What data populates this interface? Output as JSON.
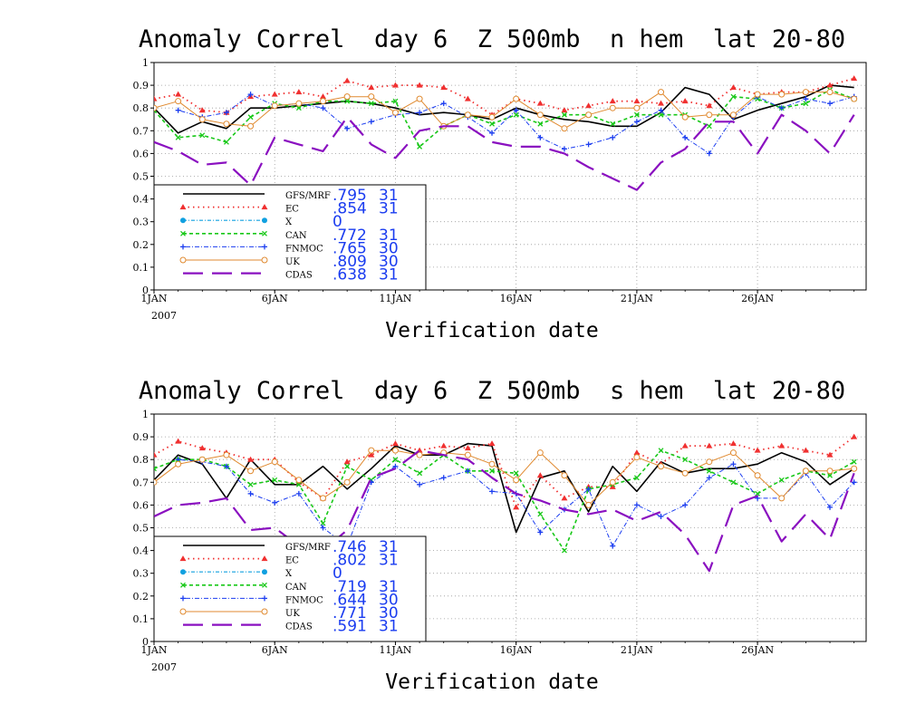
{
  "colors": {
    "GFS/MRF": "#000000",
    "EC": "#f03030",
    "X": "#10a0e0",
    "CAN": "#18c818",
    "FNMOC": "#1a3cf0",
    "UK": "#e08a30",
    "CDAS": "#8a10c0",
    "legend_value": "#1a3cf0",
    "grid": "#9a9a9a"
  },
  "chart_data": [
    {
      "type": "line",
      "title": "Anomaly Correl  day 6  Z 500mb  n hem  lat 20-80",
      "xlabel": "Verification date",
      "ylabel": "",
      "x_tick_labels": [
        "1JAN",
        "6JAN",
        "11JAN",
        "16JAN",
        "21JAN",
        "26JAN"
      ],
      "x_tick_days": [
        1,
        6,
        11,
        16,
        21,
        26
      ],
      "x_year_label": "2007",
      "xlim": [
        1,
        30
      ],
      "ylim": [
        0,
        1
      ],
      "y_ticks": [
        "0",
        "0.1",
        "0.2",
        "0.3",
        "0.4",
        "0.5",
        "0.6",
        "0.7",
        "0.8",
        "0.9",
        "1"
      ],
      "grid": true,
      "legend_placement": "bottom-left",
      "legend": [
        {
          "name": "GFS/MRF",
          "value": ".795",
          "count": "31"
        },
        {
          "name": "EC",
          "value": ".854",
          "count": "31"
        },
        {
          "name": "X",
          "value": "0",
          "count": ""
        },
        {
          "name": "CAN",
          "value": ".772",
          "count": "31"
        },
        {
          "name": "FNMOC",
          "value": ".765",
          "count": "30"
        },
        {
          "name": "UK",
          "value": ".809",
          "count": "30"
        },
        {
          "name": "CDAS",
          "value": ".638",
          "count": "31"
        }
      ],
      "series": [
        {
          "name": "GFS/MRF",
          "x": [
            1,
            2,
            3,
            4,
            5,
            6,
            7,
            8,
            9,
            10,
            11,
            12,
            13,
            14,
            15,
            16,
            17,
            18,
            19,
            20,
            21,
            22,
            23,
            24,
            25,
            26,
            27,
            28,
            29,
            30
          ],
          "values": [
            0.8,
            0.69,
            0.74,
            0.71,
            0.8,
            0.8,
            0.81,
            0.82,
            0.83,
            0.82,
            0.8,
            0.77,
            0.78,
            0.77,
            0.75,
            0.8,
            0.77,
            0.75,
            0.74,
            0.72,
            0.72,
            0.78,
            0.89,
            0.86,
            0.75,
            0.79,
            0.82,
            0.85,
            0.9,
            0.89
          ]
        },
        {
          "name": "EC",
          "x": [
            1,
            2,
            3,
            4,
            5,
            6,
            7,
            8,
            9,
            10,
            11,
            12,
            13,
            14,
            15,
            16,
            17,
            18,
            19,
            20,
            21,
            22,
            23,
            24,
            25,
            26,
            27,
            28,
            29,
            30
          ],
          "values": [
            0.84,
            0.86,
            0.79,
            0.78,
            0.85,
            0.86,
            0.87,
            0.85,
            0.92,
            0.89,
            0.9,
            0.9,
            0.89,
            0.84,
            0.77,
            0.84,
            0.82,
            0.79,
            0.81,
            0.83,
            0.83,
            0.82,
            0.83,
            0.81,
            0.89,
            0.86,
            0.87,
            0.87,
            0.9,
            0.93
          ]
        },
        {
          "name": "CAN",
          "x": [
            1,
            2,
            3,
            4,
            5,
            6,
            7,
            8,
            9,
            10,
            11,
            12,
            13,
            14,
            15,
            16,
            17,
            18,
            19,
            20,
            21,
            22,
            23,
            24,
            25,
            26,
            27,
            28,
            29,
            30
          ],
          "values": [
            0.79,
            0.67,
            0.68,
            0.65,
            0.76,
            0.82,
            0.8,
            0.83,
            0.83,
            0.82,
            0.83,
            0.63,
            0.72,
            0.77,
            0.73,
            0.77,
            0.73,
            0.77,
            0.77,
            0.73,
            0.77,
            0.77,
            0.77,
            0.72,
            0.85,
            0.84,
            0.8,
            0.82,
            0.88,
            0.84
          ]
        },
        {
          "name": "FNMOC",
          "x": [
            2,
            3,
            4,
            5,
            6,
            7,
            8,
            9,
            10,
            11,
            12,
            13,
            14,
            15,
            16,
            17,
            18,
            19,
            20,
            21,
            22,
            23,
            24,
            25,
            26,
            27,
            28,
            29,
            30
          ],
          "values": [
            0.79,
            0.76,
            0.78,
            0.86,
            0.81,
            0.82,
            0.8,
            0.71,
            0.74,
            0.77,
            0.78,
            0.82,
            0.76,
            0.69,
            0.79,
            0.67,
            0.62,
            0.64,
            0.67,
            0.74,
            0.79,
            0.67,
            0.6,
            0.76,
            0.85,
            0.8,
            0.84,
            0.82,
            0.85
          ]
        },
        {
          "name": "UK",
          "x": [
            1,
            2,
            3,
            4,
            5,
            6,
            7,
            8,
            9,
            10,
            11,
            12,
            13,
            14,
            15,
            16,
            17,
            18,
            19,
            20,
            21,
            22,
            23,
            24,
            25,
            26,
            27,
            28,
            29,
            30
          ],
          "values": [
            0.8,
            0.83,
            0.75,
            0.73,
            0.72,
            0.81,
            0.82,
            0.83,
            0.85,
            0.85,
            0.78,
            0.84,
            0.72,
            0.77,
            0.76,
            0.84,
            0.77,
            0.71,
            0.77,
            0.8,
            0.8,
            0.87,
            0.76,
            0.77,
            0.77,
            0.86,
            0.86,
            0.87,
            0.87,
            0.84
          ]
        },
        {
          "name": "CDAS",
          "x": [
            1,
            2,
            3,
            4,
            5,
            6,
            7,
            8,
            9,
            10,
            11,
            12,
            13,
            14,
            15,
            16,
            17,
            18,
            19,
            20,
            21,
            22,
            23,
            24,
            25,
            26,
            27,
            28,
            29,
            30
          ],
          "values": [
            0.65,
            0.61,
            0.55,
            0.56,
            0.46,
            0.67,
            0.64,
            0.61,
            0.76,
            0.64,
            0.58,
            0.7,
            0.72,
            0.72,
            0.65,
            0.63,
            0.63,
            0.6,
            0.54,
            0.49,
            0.44,
            0.56,
            0.62,
            0.74,
            0.74,
            0.6,
            0.77,
            0.7,
            0.6,
            0.77
          ]
        }
      ]
    },
    {
      "type": "line",
      "title": "Anomaly Correl  day 6  Z 500mb  s hem  lat 20-80",
      "xlabel": "Verification date",
      "ylabel": "",
      "x_tick_labels": [
        "1JAN",
        "6JAN",
        "11JAN",
        "16JAN",
        "21JAN",
        "26JAN"
      ],
      "x_tick_days": [
        1,
        6,
        11,
        16,
        21,
        26
      ],
      "x_year_label": "2007",
      "xlim": [
        1,
        30
      ],
      "ylim": [
        0,
        1
      ],
      "y_ticks": [
        "0",
        "0.1",
        "0.2",
        "0.3",
        "0.4",
        "0.5",
        "0.6",
        "0.7",
        "0.8",
        "0.9",
        "1"
      ],
      "grid": true,
      "legend_placement": "bottom-left",
      "legend": [
        {
          "name": "GFS/MRF",
          "value": ".746",
          "count": "31"
        },
        {
          "name": "EC",
          "value": ".802",
          "count": "31"
        },
        {
          "name": "X",
          "value": "0",
          "count": ""
        },
        {
          "name": "CAN",
          "value": ".719",
          "count": "31"
        },
        {
          "name": "FNMOC",
          "value": ".644",
          "count": "30"
        },
        {
          "name": "UK",
          "value": ".771",
          "count": "30"
        },
        {
          "name": "CDAS",
          "value": ".591",
          "count": "31"
        }
      ],
      "series": [
        {
          "name": "GFS/MRF",
          "x": [
            1,
            2,
            3,
            4,
            5,
            6,
            7,
            8,
            9,
            10,
            11,
            12,
            13,
            14,
            15,
            16,
            17,
            18,
            19,
            20,
            21,
            22,
            23,
            24,
            25,
            26,
            27,
            28,
            29,
            30
          ],
          "values": [
            0.71,
            0.82,
            0.78,
            0.63,
            0.8,
            0.69,
            0.69,
            0.77,
            0.67,
            0.76,
            0.86,
            0.82,
            0.82,
            0.87,
            0.86,
            0.48,
            0.72,
            0.75,
            0.57,
            0.77,
            0.66,
            0.79,
            0.74,
            0.76,
            0.76,
            0.78,
            0.83,
            0.79,
            0.69,
            0.76
          ]
        },
        {
          "name": "EC",
          "x": [
            1,
            2,
            3,
            4,
            5,
            6,
            7,
            8,
            9,
            10,
            11,
            12,
            13,
            14,
            15,
            16,
            17,
            18,
            19,
            20,
            21,
            22,
            23,
            24,
            25,
            26,
            27,
            28,
            29,
            30
          ],
          "values": [
            0.82,
            0.88,
            0.85,
            0.83,
            0.8,
            0.8,
            0.7,
            0.63,
            0.79,
            0.82,
            0.87,
            0.84,
            0.86,
            0.85,
            0.87,
            0.59,
            0.73,
            0.63,
            0.68,
            0.68,
            0.83,
            0.78,
            0.86,
            0.86,
            0.87,
            0.84,
            0.86,
            0.84,
            0.82,
            0.9
          ]
        },
        {
          "name": "CAN",
          "x": [
            1,
            2,
            3,
            4,
            5,
            6,
            7,
            8,
            9,
            10,
            11,
            12,
            13,
            14,
            15,
            16,
            17,
            18,
            19,
            20,
            21,
            22,
            23,
            24,
            25,
            26,
            27,
            28,
            29,
            30
          ],
          "values": [
            0.76,
            0.8,
            0.8,
            0.77,
            0.69,
            0.71,
            0.69,
            0.52,
            0.77,
            0.71,
            0.8,
            0.74,
            0.82,
            0.75,
            0.75,
            0.74,
            0.56,
            0.4,
            0.67,
            0.69,
            0.72,
            0.84,
            0.8,
            0.75,
            0.7,
            0.65,
            0.71,
            0.75,
            0.73,
            0.79
          ]
        },
        {
          "name": "FNMOC",
          "x": [
            2,
            3,
            4,
            5,
            6,
            7,
            8,
            9,
            10,
            11,
            12,
            13,
            14,
            15,
            16,
            17,
            18,
            19,
            20,
            21,
            22,
            23,
            24,
            25,
            26,
            27,
            28,
            29,
            30
          ],
          "values": [
            0.8,
            0.79,
            0.77,
            0.65,
            0.61,
            0.65,
            0.5,
            0.42,
            0.7,
            0.77,
            0.69,
            0.72,
            0.75,
            0.66,
            0.65,
            0.48,
            0.58,
            0.67,
            0.42,
            0.6,
            0.55,
            0.6,
            0.72,
            0.78,
            0.63,
            0.63,
            0.74,
            0.59,
            0.7
          ]
        },
        {
          "name": "UK",
          "x": [
            1,
            2,
            3,
            4,
            5,
            6,
            7,
            8,
            9,
            10,
            11,
            12,
            13,
            14,
            15,
            16,
            17,
            18,
            19,
            20,
            21,
            22,
            23,
            24,
            25,
            26,
            27,
            28,
            29,
            30
          ],
          "values": [
            0.7,
            0.78,
            0.8,
            0.82,
            0.75,
            0.79,
            0.71,
            0.63,
            0.7,
            0.84,
            0.84,
            0.82,
            0.83,
            0.82,
            0.78,
            0.71,
            0.83,
            0.73,
            0.6,
            0.7,
            0.81,
            0.77,
            0.74,
            0.79,
            0.83,
            0.73,
            0.63,
            0.75,
            0.75,
            0.76
          ]
        },
        {
          "name": "CDAS",
          "x": [
            1,
            2,
            3,
            4,
            5,
            6,
            7,
            8,
            9,
            10,
            11,
            12,
            13,
            14,
            15,
            16,
            17,
            18,
            19,
            20,
            21,
            22,
            23,
            24,
            25,
            26,
            27,
            28,
            29,
            30
          ],
          "values": [
            0.55,
            0.6,
            0.61,
            0.63,
            0.49,
            0.5,
            0.42,
            0.4,
            0.49,
            0.72,
            0.76,
            0.84,
            0.82,
            0.8,
            0.72,
            0.65,
            0.62,
            0.58,
            0.56,
            0.58,
            0.53,
            0.57,
            0.47,
            0.31,
            0.6,
            0.64,
            0.44,
            0.56,
            0.45,
            0.74
          ]
        }
      ]
    }
  ]
}
